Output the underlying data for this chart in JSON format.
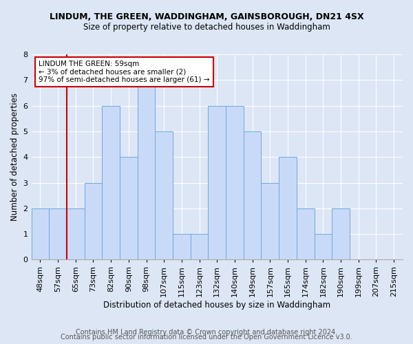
{
  "title": "LINDUM, THE GREEN, WADDINGHAM, GAINSBOROUGH, DN21 4SX",
  "subtitle": "Size of property relative to detached houses in Waddingham",
  "xlabel": "Distribution of detached houses by size in Waddingham",
  "ylabel": "Number of detached properties",
  "categories": [
    "48sqm",
    "57sqm",
    "65sqm",
    "73sqm",
    "82sqm",
    "90sqm",
    "98sqm",
    "107sqm",
    "115sqm",
    "123sqm",
    "132sqm",
    "140sqm",
    "149sqm",
    "157sqm",
    "165sqm",
    "174sqm",
    "182sqm",
    "190sqm",
    "199sqm",
    "207sqm",
    "215sqm"
  ],
  "values": [
    2,
    2,
    2,
    3,
    6,
    4,
    7,
    5,
    1,
    1,
    6,
    6,
    5,
    3,
    4,
    2,
    1,
    2,
    0,
    0,
    0
  ],
  "bar_color": "#c9daf8",
  "bar_edge_color": "#6fa8dc",
  "highlight_bar_idx": 1,
  "highlight_color": "#cc0000",
  "annotation_line1": "LINDUM THE GREEN: 59sqm",
  "annotation_line2": "← 3% of detached houses are smaller (2)",
  "annotation_line3": "97% of semi-detached houses are larger (61) →",
  "annotation_box_color": "white",
  "annotation_box_edge": "#cc0000",
  "ylim": [
    0,
    8
  ],
  "yticks": [
    0,
    1,
    2,
    3,
    4,
    5,
    6,
    7,
    8
  ],
  "footer1": "Contains HM Land Registry data © Crown copyright and database right 2024.",
  "footer2": "Contains public sector information licensed under the Open Government Licence v3.0.",
  "bg_color": "#dce6f5",
  "plot_bg_color": "#dce6f5",
  "title_fontsize": 9,
  "subtitle_fontsize": 8.5,
  "axis_label_fontsize": 8.5,
  "tick_fontsize": 8,
  "footer_fontsize": 7
}
